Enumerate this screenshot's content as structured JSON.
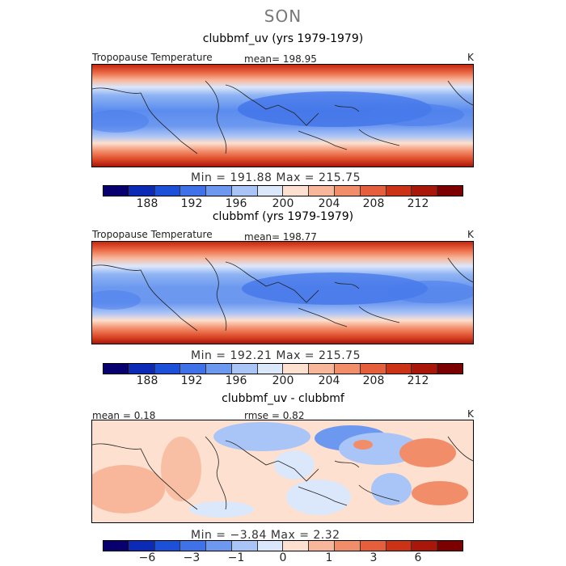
{
  "figure": {
    "season": "SON"
  },
  "panels": [
    {
      "title": "clubbmf_uv (yrs 1979-1979)",
      "variable_label": "Tropopause Temperature",
      "stat_label": "mean= 198.95",
      "unit": "K",
      "min_max": "Min = 191.88 Max = 215.75",
      "colorbar_ticks": [
        "188",
        "192",
        "196",
        "200",
        "204",
        "208",
        "212"
      ]
    },
    {
      "title": "clubbmf (yrs 1979-1979)",
      "variable_label": "Tropopause Temperature",
      "stat_label": "mean= 198.77",
      "unit": "K",
      "min_max": "Min = 192.21 Max = 215.75",
      "colorbar_ticks": [
        "188",
        "192",
        "196",
        "200",
        "204",
        "208",
        "212"
      ]
    },
    {
      "title": "clubbmf_uv - clubbmf",
      "mean_label": "mean = 0.18",
      "rmse_label": "rmse = 0.82",
      "unit": "K",
      "min_max": "Min = −3.84 Max = 2.32",
      "colorbar_ticks": [
        "−6",
        "−3",
        "−1",
        "0",
        "1",
        "3",
        "6"
      ]
    }
  ],
  "colors": {
    "colorbar": [
      "#08006e",
      "#0b2ab5",
      "#1c50d8",
      "#3f72e8",
      "#6c98f0",
      "#a9c4f6",
      "#dbe7fb",
      "#fde0cf",
      "#f8b79a",
      "#f28d6a",
      "#e65f3d",
      "#cc3216",
      "#a8170a",
      "#7d0000"
    ]
  }
}
